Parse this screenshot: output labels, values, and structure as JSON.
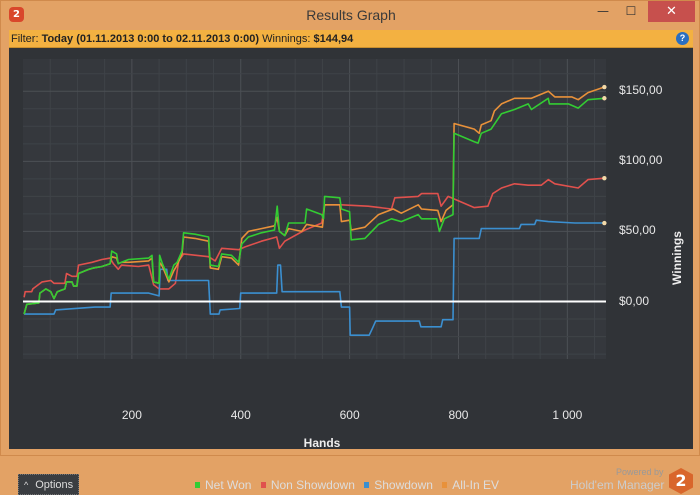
{
  "window": {
    "title": "Results Graph",
    "app_icon": "2",
    "minimize_icon": "minimize-icon",
    "maximize_icon": "maximize-icon",
    "close_icon": "close-icon"
  },
  "filter": {
    "label": "Filter:",
    "value": "Today (01.11.2013 0:00 to 02.11.2013 0:00)",
    "winnings_label": "Winnings:",
    "winnings_value": "$144,94",
    "help": "?"
  },
  "footer": {
    "options_label": "Options",
    "options_icon": "chevron-up-icon",
    "powered_by": "Powered by",
    "brand": "Hold'em Manager",
    "brand_logo": "2"
  },
  "chart_data": {
    "type": "line",
    "xlabel": "Hands",
    "ylabel": "Winnings",
    "xlim": [
      0,
      1071
    ],
    "ylim": [
      -41,
      173
    ],
    "xticks": [
      {
        "v": 200,
        "label": "200"
      },
      {
        "v": 400,
        "label": "400"
      },
      {
        "v": 600,
        "label": "600"
      },
      {
        "v": 800,
        "label": "800"
      },
      {
        "v": 1000,
        "label": "1 000"
      }
    ],
    "yticks": [
      {
        "v": 0,
        "label": "$0,00"
      },
      {
        "v": 50,
        "label": "$50,00"
      },
      {
        "v": 100,
        "label": "$100,00"
      },
      {
        "v": 150,
        "label": "$150,00"
      }
    ],
    "grid": true,
    "legend": "bottom",
    "series": [
      {
        "name": "Non Showdown",
        "color": "#e0514d",
        "points": [
          [
            2,
            3
          ],
          [
            4,
            7
          ],
          [
            16,
            7
          ],
          [
            18,
            9
          ],
          [
            35,
            14
          ],
          [
            51,
            15
          ],
          [
            57,
            13
          ],
          [
            77,
            13
          ],
          [
            80,
            20
          ],
          [
            90,
            18
          ],
          [
            99,
            18
          ],
          [
            102,
            26
          ],
          [
            127,
            28
          ],
          [
            145,
            30
          ],
          [
            160,
            31
          ],
          [
            166,
            27
          ],
          [
            175,
            23
          ],
          [
            181,
            26
          ],
          [
            212,
            25
          ],
          [
            231,
            26
          ],
          [
            240,
            12
          ],
          [
            250,
            9
          ],
          [
            268,
            9
          ],
          [
            280,
            13
          ],
          [
            286,
            29
          ],
          [
            295,
            34
          ],
          [
            341,
            32
          ],
          [
            353,
            29
          ],
          [
            365,
            38
          ],
          [
            396,
            37
          ],
          [
            408,
            39
          ],
          [
            438,
            43
          ],
          [
            466,
            46
          ],
          [
            471,
            38
          ],
          [
            481,
            43
          ],
          [
            518,
            51
          ],
          [
            549,
            56
          ],
          [
            554,
            69
          ],
          [
            585,
            69
          ],
          [
            634,
            68
          ],
          [
            677,
            66
          ],
          [
            683,
            74
          ],
          [
            726,
            75
          ],
          [
            732,
            77
          ],
          [
            762,
            77
          ],
          [
            768,
            68
          ],
          [
            781,
            75
          ],
          [
            805,
            71
          ],
          [
            829,
            67
          ],
          [
            854,
            68
          ],
          [
            863,
            77
          ],
          [
            879,
            81
          ],
          [
            903,
            84
          ],
          [
            928,
            83
          ],
          [
            952,
            83
          ],
          [
            965,
            87
          ],
          [
            977,
            84
          ],
          [
            1020,
            81
          ],
          [
            1038,
            87
          ],
          [
            1068,
            88
          ]
        ]
      },
      {
        "name": "Showdown",
        "color": "#3b8fd0",
        "points": [
          [
            2,
            -9
          ],
          [
            57,
            -9
          ],
          [
            60,
            -6
          ],
          [
            132,
            -4
          ],
          [
            160,
            -4
          ],
          [
            162,
            6
          ],
          [
            231,
            6
          ],
          [
            250,
            4
          ],
          [
            252,
            23
          ],
          [
            264,
            23
          ],
          [
            266,
            15
          ],
          [
            341,
            15
          ],
          [
            344,
            -9
          ],
          [
            360,
            -9
          ],
          [
            362,
            -6
          ],
          [
            398,
            -5
          ],
          [
            400,
            6
          ],
          [
            466,
            6
          ],
          [
            468,
            26
          ],
          [
            473,
            26
          ],
          [
            476,
            7
          ],
          [
            582,
            7
          ],
          [
            585,
            -4
          ],
          [
            600,
            -4
          ],
          [
            601,
            -24
          ],
          [
            636,
            -24
          ],
          [
            642,
            -19
          ],
          [
            648,
            -14
          ],
          [
            728,
            -14
          ],
          [
            731,
            -18
          ],
          [
            768,
            -18
          ],
          [
            771,
            -13
          ],
          [
            790,
            -13
          ],
          [
            792,
            45
          ],
          [
            838,
            45
          ],
          [
            842,
            52
          ],
          [
            912,
            52
          ],
          [
            915,
            55
          ],
          [
            940,
            55
          ],
          [
            943,
            58
          ],
          [
            965,
            57
          ],
          [
            1014,
            56
          ],
          [
            1068,
            56
          ]
        ]
      },
      {
        "name": "All-In EV",
        "color": "#e8913a",
        "points": [
          [
            2,
            -9
          ],
          [
            7,
            -2
          ],
          [
            29,
            -1
          ],
          [
            31,
            6
          ],
          [
            42,
            9
          ],
          [
            51,
            7
          ],
          [
            57,
            2
          ],
          [
            63,
            7
          ],
          [
            77,
            9
          ],
          [
            80,
            14
          ],
          [
            90,
            14
          ],
          [
            93,
            11
          ],
          [
            99,
            11
          ],
          [
            102,
            20
          ],
          [
            121,
            23
          ],
          [
            130,
            24
          ],
          [
            145,
            25
          ],
          [
            160,
            27
          ],
          [
            163,
            32
          ],
          [
            172,
            31
          ],
          [
            175,
            27
          ],
          [
            181,
            28
          ],
          [
            194,
            28
          ],
          [
            231,
            29
          ],
          [
            237,
            31
          ],
          [
            240,
            14
          ],
          [
            250,
            13
          ],
          [
            251,
            28
          ],
          [
            256,
            25
          ],
          [
            268,
            14
          ],
          [
            277,
            22
          ],
          [
            283,
            26
          ],
          [
            292,
            34
          ],
          [
            295,
            46
          ],
          [
            316,
            45
          ],
          [
            341,
            43
          ],
          [
            344,
            24
          ],
          [
            359,
            23
          ],
          [
            365,
            32
          ],
          [
            383,
            31
          ],
          [
            396,
            26
          ],
          [
            402,
            45
          ],
          [
            414,
            50
          ],
          [
            438,
            52
          ],
          [
            462,
            54
          ],
          [
            467,
            60
          ],
          [
            471,
            50
          ],
          [
            481,
            47
          ],
          [
            488,
            52
          ],
          [
            512,
            50
          ],
          [
            521,
            55
          ],
          [
            550,
            53
          ],
          [
            554,
            69
          ],
          [
            582,
            69
          ],
          [
            585,
            57
          ],
          [
            600,
            58
          ],
          [
            603,
            51
          ],
          [
            628,
            53
          ],
          [
            653,
            62
          ],
          [
            680,
            66
          ],
          [
            695,
            63
          ],
          [
            726,
            69
          ],
          [
            732,
            66
          ],
          [
            762,
            65
          ],
          [
            768,
            57
          ],
          [
            777,
            65
          ],
          [
            790,
            69
          ],
          [
            792,
            127
          ],
          [
            829,
            123
          ],
          [
            838,
            120
          ],
          [
            842,
            126
          ],
          [
            860,
            129
          ],
          [
            866,
            136
          ],
          [
            879,
            141
          ],
          [
            903,
            145
          ],
          [
            934,
            145
          ],
          [
            965,
            150
          ],
          [
            977,
            146
          ],
          [
            1008,
            146
          ],
          [
            1020,
            144
          ],
          [
            1038,
            149
          ],
          [
            1068,
            153
          ]
        ]
      },
      {
        "name": "Net Won",
        "color": "#33cc33",
        "points": [
          [
            2,
            -9
          ],
          [
            7,
            -2
          ],
          [
            29,
            -1
          ],
          [
            31,
            6
          ],
          [
            42,
            9
          ],
          [
            51,
            7
          ],
          [
            57,
            2
          ],
          [
            63,
            7
          ],
          [
            77,
            9
          ],
          [
            80,
            14
          ],
          [
            90,
            14
          ],
          [
            93,
            11
          ],
          [
            99,
            11
          ],
          [
            102,
            20
          ],
          [
            121,
            23
          ],
          [
            130,
            24
          ],
          [
            145,
            25
          ],
          [
            160,
            27
          ],
          [
            163,
            36
          ],
          [
            172,
            34
          ],
          [
            175,
            27
          ],
          [
            181,
            28
          ],
          [
            194,
            30
          ],
          [
            231,
            31
          ],
          [
            237,
            33
          ],
          [
            240,
            14
          ],
          [
            250,
            13
          ],
          [
            251,
            33
          ],
          [
            256,
            27
          ],
          [
            268,
            16
          ],
          [
            277,
            26
          ],
          [
            283,
            28
          ],
          [
            292,
            36
          ],
          [
            295,
            49
          ],
          [
            316,
            48
          ],
          [
            341,
            46
          ],
          [
            344,
            26
          ],
          [
            359,
            25
          ],
          [
            365,
            34
          ],
          [
            383,
            33
          ],
          [
            396,
            28
          ],
          [
            402,
            41
          ],
          [
            414,
            46
          ],
          [
            438,
            49
          ],
          [
            462,
            51
          ],
          [
            467,
            68
          ],
          [
            471,
            50
          ],
          [
            481,
            47
          ],
          [
            488,
            56
          ],
          [
            518,
            56
          ],
          [
            521,
            66
          ],
          [
            549,
            62
          ],
          [
            552,
            59
          ],
          [
            554,
            75
          ],
          [
            582,
            74
          ],
          [
            585,
            66
          ],
          [
            600,
            64
          ],
          [
            603,
            44
          ],
          [
            628,
            45
          ],
          [
            653,
            55
          ],
          [
            677,
            59
          ],
          [
            695,
            57
          ],
          [
            726,
            62
          ],
          [
            732,
            59
          ],
          [
            760,
            59
          ],
          [
            765,
            50
          ],
          [
            774,
            59
          ],
          [
            790,
            62
          ],
          [
            792,
            120
          ],
          [
            829,
            114
          ],
          [
            836,
            113
          ],
          [
            842,
            120
          ],
          [
            860,
            123
          ],
          [
            879,
            134
          ],
          [
            903,
            137
          ],
          [
            928,
            141
          ],
          [
            934,
            137
          ],
          [
            965,
            145
          ],
          [
            967,
            141
          ],
          [
            1002,
            141
          ],
          [
            1020,
            138
          ],
          [
            1038,
            144
          ],
          [
            1068,
            145
          ]
        ]
      }
    ]
  }
}
